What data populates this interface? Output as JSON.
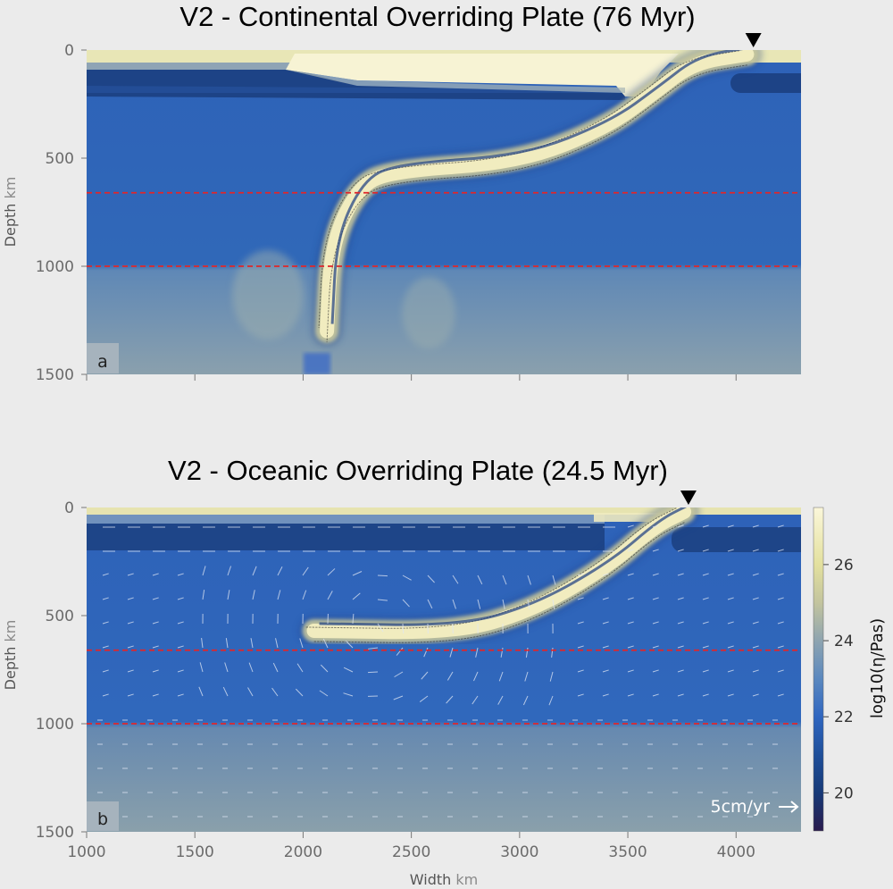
{
  "chart_data": [
    {
      "type": "heatmap",
      "panel_label": "a",
      "title": "V2 - Continental Overriding Plate (76 Myr)",
      "xlabel": "Width",
      "xlabel_unit": "km",
      "ylabel": "Depth",
      "ylabel_unit": "km",
      "xlim": [
        1000,
        4300
      ],
      "ylim": [
        1500,
        0
      ],
      "x_ticks": [
        1000,
        1500,
        2000,
        2500,
        3000,
        3500,
        4000
      ],
      "y_ticks": [
        0,
        500,
        1000,
        1500
      ],
      "x_tick_labels_shown": false,
      "dashed_reference_depths_km": [
        660,
        1000
      ],
      "trench_marker_x_km": 4080,
      "slab_centerline": [
        {
          "x": 4050,
          "y": 20
        },
        {
          "x": 3800,
          "y": 60
        },
        {
          "x": 3620,
          "y": 200
        },
        {
          "x": 3400,
          "y": 360
        },
        {
          "x": 3000,
          "y": 520
        },
        {
          "x": 2400,
          "y": 560
        },
        {
          "x": 2250,
          "y": 640
        },
        {
          "x": 2130,
          "y": 900
        },
        {
          "x": 2110,
          "y": 1300
        }
      ]
    },
    {
      "type": "heatmap",
      "panel_label": "b",
      "title": "V2 - Oceanic Overriding Plate (24.5 Myr)",
      "xlabel": "Width",
      "xlabel_unit": "km",
      "ylabel": "Depth",
      "ylabel_unit": "km",
      "xlim": [
        1000,
        4300
      ],
      "ylim": [
        1500,
        0
      ],
      "x_ticks": [
        1000,
        1500,
        2000,
        2500,
        3000,
        3500,
        4000
      ],
      "y_ticks": [
        0,
        500,
        1000,
        1500
      ],
      "x_tick_labels_shown": true,
      "dashed_reference_depths_km": [
        660,
        1000
      ],
      "trench_marker_x_km": 3780,
      "slab_centerline": [
        {
          "x": 3760,
          "y": 20
        },
        {
          "x": 3620,
          "y": 90
        },
        {
          "x": 3400,
          "y": 280
        },
        {
          "x": 3050,
          "y": 480
        },
        {
          "x": 2700,
          "y": 580
        },
        {
          "x": 2050,
          "y": 570
        }
      ],
      "velocity_scale_text": "5cm/yr",
      "colorbar": {
        "label": "log10(η/Pas)",
        "range": [
          19,
          27.5
        ],
        "ticks": [
          20,
          22,
          24,
          26
        ],
        "stops": [
          {
            "v": 19,
            "color": "#2a1b4e"
          },
          {
            "v": 20,
            "color": "#173a78"
          },
          {
            "v": 21,
            "color": "#1f4f9a"
          },
          {
            "v": 22,
            "color": "#2f66c0"
          },
          {
            "v": 23,
            "color": "#5a88bf"
          },
          {
            "v": 24,
            "color": "#8ea4b0"
          },
          {
            "v": 25,
            "color": "#c3c49e"
          },
          {
            "v": 26,
            "color": "#e3e09e"
          },
          {
            "v": 27.5,
            "color": "#fbf7da"
          }
        ]
      }
    }
  ]
}
